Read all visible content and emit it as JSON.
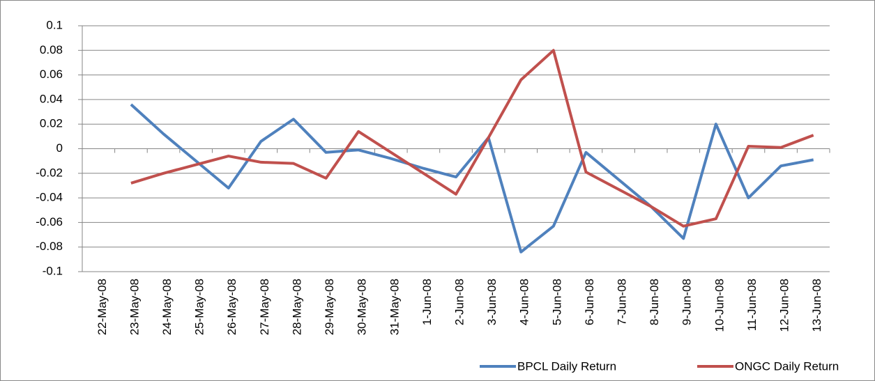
{
  "chart_data": {
    "type": "line",
    "categories": [
      "22-May-08",
      "23-May-08",
      "24-May-08",
      "25-May-08",
      "26-May-08",
      "27-May-08",
      "28-May-08",
      "29-May-08",
      "30-May-08",
      "31-May-08",
      "1-Jun-08",
      "2-Jun-08",
      "3-Jun-08",
      "4-Jun-08",
      "5-Jun-08",
      "6-Jun-08",
      "7-Jun-08",
      "8-Jun-08",
      "9-Jun-08",
      "10-Jun-08",
      "11-Jun-08",
      "12-Jun-08",
      "13-Jun-08"
    ],
    "series": [
      {
        "name": "BPCL Daily Return",
        "color": "#4f81bd",
        "values": [
          null,
          0.036,
          0.012,
          -0.01,
          -0.032,
          0.006,
          0.024,
          -0.003,
          -0.001,
          -0.008,
          -0.016,
          -0.023,
          0.009,
          -0.084,
          -0.063,
          -0.003,
          -0.025,
          -0.047,
          -0.073,
          0.02,
          -0.04,
          -0.014,
          -0.009
        ]
      },
      {
        "name": "ONGC Daily Return",
        "color": "#c0504d",
        "values": [
          null,
          -0.028,
          -0.02,
          -0.013,
          -0.006,
          -0.011,
          -0.012,
          -0.024,
          0.014,
          -0.003,
          -0.02,
          -0.037,
          0.009,
          0.056,
          0.08,
          -0.019,
          -0.033,
          -0.047,
          -0.063,
          -0.057,
          0.002,
          0.001,
          0.011
        ]
      }
    ],
    "ylim": [
      -0.1,
      0.1
    ],
    "yticks": [
      -0.1,
      -0.08,
      -0.06,
      -0.04,
      -0.02,
      0,
      0.02,
      0.04,
      0.06,
      0.08,
      0.1
    ],
    "grid": true,
    "legend": "bottom-right"
  }
}
